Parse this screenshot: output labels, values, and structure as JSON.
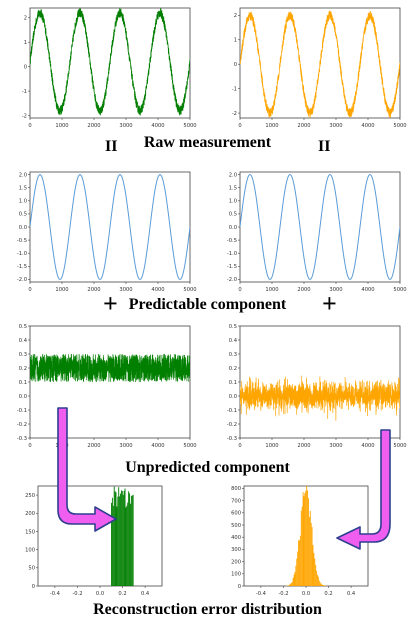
{
  "titles": {
    "raw": "Raw measurement",
    "predictable": "Predictable component",
    "unpredicted": "Unpredicted  component",
    "reconstruction": "Reconstruction error distribution"
  },
  "symbols": {
    "equals": "II",
    "plus": "+"
  },
  "colors": {
    "green": "#007f00",
    "orange": "#ffa500",
    "blue": "#5b9bd5",
    "arrow_fill": "#f05ef0",
    "arrow_stroke": "#2f3f8f"
  },
  "chart_data": [
    {
      "id": "raw-left",
      "type": "line",
      "series": [
        {
          "color": "#007f00",
          "function": "2*sin(2*pi*x/1250)+0.2",
          "noise": 0.2
        }
      ],
      "xlim": [
        0,
        5000
      ],
      "ylim": [
        -2.1,
        2.4
      ],
      "xticks": [
        0,
        1000,
        2000,
        3000,
        4000,
        5000
      ],
      "yticks": [
        -2,
        -1,
        0,
        1,
        2
      ]
    },
    {
      "id": "raw-right",
      "type": "line",
      "series": [
        {
          "color": "#ffa500",
          "function": "2*sin(2*pi*x/1250)",
          "noise": 0.2
        }
      ],
      "xlim": [
        0,
        5000
      ],
      "ylim": [
        -2.2,
        2.3
      ],
      "xticks": [
        0,
        1000,
        2000,
        3000,
        4000,
        5000
      ],
      "yticks": [
        -2,
        -1,
        0,
        1,
        2
      ]
    },
    {
      "id": "pred-left",
      "type": "line",
      "series": [
        {
          "color": "#5b9bd5",
          "function": "2*sin(2*pi*x/1250)"
        }
      ],
      "xlim": [
        0,
        5000
      ],
      "ylim": [
        -2.1,
        2.1
      ],
      "xticks": [
        0,
        1000,
        2000,
        3000,
        4000,
        5000
      ],
      "yticks": [
        -2.0,
        -1.5,
        -1.0,
        -0.5,
        0.0,
        0.5,
        1.0,
        1.5,
        2.0
      ],
      "ytick_labels": [
        "-2.0",
        "-1.5",
        "-1.0",
        "-0.5",
        "0.0",
        "0.5",
        "1.0",
        "1.5",
        "2.0"
      ]
    },
    {
      "id": "pred-right",
      "type": "line",
      "series": [
        {
          "color": "#5b9bd5",
          "function": "2*sin(2*pi*x/1250)"
        }
      ],
      "xlim": [
        0,
        5000
      ],
      "ylim": [
        -2.1,
        2.1
      ],
      "xticks": [
        0,
        1000,
        2000,
        3000,
        4000,
        5000
      ],
      "yticks": [
        -2.0,
        -1.5,
        -1.0,
        -0.5,
        0.0,
        0.5,
        1.0,
        1.5,
        2.0
      ],
      "ytick_labels": [
        "-2.0",
        "-1.5",
        "-1.0",
        "-0.5",
        "0.0",
        "0.5",
        "1.0",
        "1.5",
        "2.0"
      ]
    },
    {
      "id": "unpred-left",
      "type": "line",
      "series": [
        {
          "color": "#007f00",
          "distribution": "uniform",
          "range": [
            0.1,
            0.3
          ]
        }
      ],
      "xlim": [
        0,
        5000
      ],
      "ylim": [
        -0.3,
        0.5
      ],
      "xticks": [
        0,
        1000,
        2000,
        3000,
        4000,
        5000
      ],
      "yticks": [
        -0.3,
        -0.2,
        -0.1,
        0.0,
        0.1,
        0.2,
        0.3,
        0.4,
        0.5
      ],
      "ytick_labels": [
        "-0.3",
        "-0.2",
        "-0.1",
        "0.0",
        "0.1",
        "0.2",
        "0.3",
        "0.4",
        "0.5"
      ]
    },
    {
      "id": "unpred-right",
      "type": "line",
      "series": [
        {
          "color": "#ffa500",
          "distribution": "normal",
          "mean": 0.0,
          "std": 0.05
        }
      ],
      "xlim": [
        0,
        5000
      ],
      "ylim": [
        -0.3,
        0.5
      ],
      "xticks": [
        0,
        1000,
        2000,
        3000,
        4000,
        5000
      ],
      "yticks": [
        -0.3,
        -0.2,
        -0.1,
        0.0,
        0.1,
        0.2,
        0.3,
        0.4,
        0.5
      ],
      "ytick_labels": [
        "-0.3",
        "-0.2",
        "-0.1",
        "0.0",
        "0.1",
        "0.2",
        "0.3",
        "0.4",
        "0.5"
      ]
    },
    {
      "id": "hist-left",
      "type": "bar",
      "series": [
        {
          "color": "#007f00",
          "distribution": "uniform",
          "range": [
            0.1,
            0.3
          ]
        }
      ],
      "xlim": [
        -0.55,
        0.55
      ],
      "ylim": [
        0,
        275
      ],
      "xticks": [
        -0.4,
        -0.2,
        0.0,
        0.2,
        0.4
      ],
      "xtick_labels": [
        "-0.4",
        "-0.2",
        "0.0",
        "0.2",
        "0.4"
      ],
      "yticks": [
        0,
        50,
        100,
        150,
        200,
        250
      ],
      "ytick_labels": [
        "0",
        "50",
        "100",
        "150",
        "200",
        "250"
      ]
    },
    {
      "id": "hist-right",
      "type": "bar",
      "series": [
        {
          "color": "#ffa500",
          "distribution": "normal",
          "mean": 0.0,
          "std": 0.05,
          "peak": 780
        }
      ],
      "xlim": [
        -0.55,
        0.55
      ],
      "ylim": [
        0,
        820
      ],
      "xticks": [
        -0.4,
        -0.2,
        0.0,
        0.2,
        0.4
      ],
      "xtick_labels": [
        "-0.4",
        "-0.2",
        "0.0",
        "0.2",
        "0.4"
      ],
      "yticks": [
        0,
        100,
        200,
        300,
        400,
        500,
        600,
        700,
        800
      ],
      "ytick_labels": [
        "0",
        "100",
        "200",
        "300",
        "400",
        "500",
        "600",
        "700",
        "800"
      ]
    }
  ]
}
